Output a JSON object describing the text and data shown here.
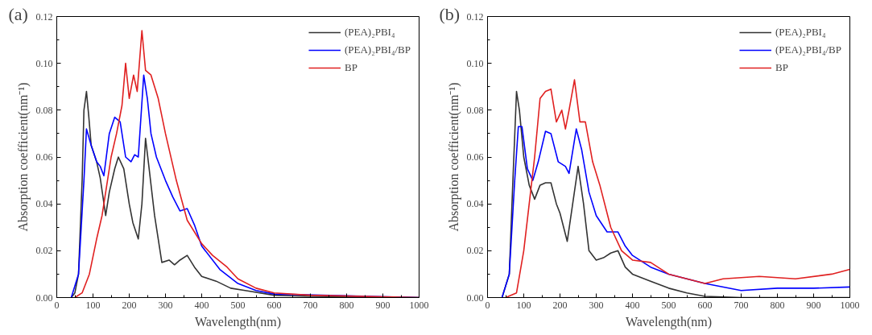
{
  "chart_data": [
    {
      "type": "line",
      "title": "(a)",
      "xlabel": "Wavelength(nm)",
      "ylabel": "Absorption coefficient(nm⁻¹)",
      "xlim": [
        0,
        1000
      ],
      "ylim": [
        0,
        0.12
      ],
      "xticks": [
        0,
        100,
        200,
        300,
        400,
        500,
        600,
        700,
        800,
        900,
        1000
      ],
      "yticks": [
        {
          "value": 0,
          "label": "0.00"
        },
        {
          "value": 0.02,
          "label": "0.02"
        },
        {
          "value": 0.04,
          "label": "0.04"
        },
        {
          "value": 0.06,
          "label": "0.06"
        },
        {
          "value": 0.08,
          "label": "0.08"
        },
        {
          "value": 0.1,
          "label": "0.10"
        },
        {
          "value": 0.12,
          "label": "0.12"
        }
      ],
      "grid": false,
      "legend": "top right",
      "line_style": "solid",
      "marker": "none",
      "series": [
        {
          "name": "(PEA)₂PBI₄",
          "color": "#333333",
          "x": [
            40,
            50,
            60,
            70,
            75,
            82,
            88,
            95,
            110,
            120,
            135,
            145,
            160,
            170,
            185,
            200,
            210,
            225,
            235,
            245,
            255,
            270,
            290,
            310,
            325,
            340,
            360,
            380,
            400,
            440,
            480,
            520,
            600,
            700,
            1000
          ],
          "values": [
            0,
            0.002,
            0.01,
            0.05,
            0.08,
            0.088,
            0.078,
            0.065,
            0.058,
            0.051,
            0.035,
            0.045,
            0.055,
            0.06,
            0.055,
            0.04,
            0.032,
            0.025,
            0.04,
            0.068,
            0.055,
            0.035,
            0.015,
            0.016,
            0.014,
            0.016,
            0.018,
            0.013,
            0.009,
            0.007,
            0.004,
            0.003,
            0.001,
            0.0005,
            0
          ]
        },
        {
          "name": "(PEA)₂PBI₄/BP",
          "color": "#0000ff",
          "x": [
            40,
            60,
            75,
            82,
            95,
            110,
            120,
            130,
            145,
            160,
            175,
            190,
            205,
            215,
            225,
            240,
            250,
            260,
            275,
            300,
            320,
            340,
            360,
            380,
            400,
            450,
            500,
            550,
            600,
            1000
          ],
          "values": [
            0,
            0.01,
            0.05,
            0.072,
            0.065,
            0.058,
            0.056,
            0.052,
            0.07,
            0.077,
            0.075,
            0.06,
            0.058,
            0.061,
            0.06,
            0.095,
            0.085,
            0.07,
            0.06,
            0.05,
            0.043,
            0.037,
            0.038,
            0.031,
            0.022,
            0.012,
            0.006,
            0.003,
            0.0015,
            0
          ]
        },
        {
          "name": "BP",
          "color": "#e02020",
          "x": [
            50,
            70,
            90,
            110,
            125,
            140,
            150,
            165,
            180,
            190,
            200,
            212,
            222,
            235,
            245,
            260,
            280,
            300,
            330,
            360,
            400,
            430,
            470,
            500,
            550,
            600,
            700,
            1000
          ],
          "values": [
            0,
            0.002,
            0.01,
            0.025,
            0.035,
            0.05,
            0.06,
            0.07,
            0.082,
            0.1,
            0.085,
            0.095,
            0.088,
            0.114,
            0.097,
            0.095,
            0.085,
            0.07,
            0.05,
            0.033,
            0.023,
            0.018,
            0.013,
            0.008,
            0.004,
            0.002,
            0.001,
            0
          ]
        }
      ]
    },
    {
      "type": "line",
      "title": "(b)",
      "xlabel": "Wavelength(nm)",
      "ylabel": "Absorption coefficient(nm⁻¹)",
      "xlim": [
        0,
        1000
      ],
      "ylim": [
        0,
        0.12
      ],
      "xticks": [
        0,
        100,
        200,
        300,
        400,
        500,
        600,
        700,
        800,
        900,
        1000
      ],
      "yticks": [
        {
          "value": 0,
          "label": "0.00"
        },
        {
          "value": 0.02,
          "label": "0.02"
        },
        {
          "value": 0.04,
          "label": "0.04"
        },
        {
          "value": 0.06,
          "label": "0.06"
        },
        {
          "value": 0.08,
          "label": "0.08"
        },
        {
          "value": 0.1,
          "label": "0.10"
        },
        {
          "value": 0.12,
          "label": "0.12"
        }
      ],
      "grid": false,
      "legend": "top right",
      "line_style": "solid",
      "marker": "none",
      "series": [
        {
          "name": "(PEA)₂PBI₄",
          "color": "#333333",
          "x": [
            40,
            60,
            70,
            80,
            88,
            100,
            115,
            130,
            145,
            160,
            175,
            190,
            200,
            220,
            235,
            250,
            265,
            280,
            300,
            320,
            340,
            360,
            380,
            400,
            450,
            500,
            550,
            600,
            700,
            1000
          ],
          "values": [
            0,
            0.01,
            0.05,
            0.088,
            0.08,
            0.06,
            0.048,
            0.042,
            0.048,
            0.049,
            0.049,
            0.04,
            0.036,
            0.024,
            0.04,
            0.056,
            0.04,
            0.02,
            0.016,
            0.017,
            0.019,
            0.02,
            0.013,
            0.01,
            0.007,
            0.004,
            0.002,
            0.0005,
            0,
            0
          ]
        },
        {
          "name": "(PEA)₂PBI₄/BP",
          "color": "#0000ff",
          "x": [
            40,
            60,
            75,
            85,
            95,
            110,
            125,
            140,
            160,
            175,
            195,
            215,
            225,
            245,
            260,
            280,
            300,
            330,
            360,
            380,
            400,
            450,
            500,
            550,
            600,
            700,
            800,
            900,
            1000
          ],
          "values": [
            0,
            0.01,
            0.05,
            0.073,
            0.073,
            0.055,
            0.05,
            0.058,
            0.071,
            0.07,
            0.058,
            0.056,
            0.053,
            0.072,
            0.063,
            0.045,
            0.035,
            0.028,
            0.028,
            0.022,
            0.018,
            0.013,
            0.01,
            0.008,
            0.006,
            0.003,
            0.004,
            0.004,
            0.0045
          ]
        },
        {
          "name": "BP",
          "color": "#e02020",
          "x": [
            50,
            80,
            100,
            115,
            130,
            145,
            160,
            175,
            190,
            205,
            215,
            225,
            240,
            255,
            270,
            290,
            310,
            340,
            370,
            400,
            450,
            500,
            550,
            600,
            650,
            750,
            850,
            950,
            1000
          ],
          "values": [
            0,
            0.002,
            0.02,
            0.04,
            0.06,
            0.085,
            0.088,
            0.089,
            0.075,
            0.08,
            0.072,
            0.08,
            0.093,
            0.075,
            0.075,
            0.058,
            0.048,
            0.03,
            0.02,
            0.016,
            0.015,
            0.01,
            0.008,
            0.006,
            0.008,
            0.009,
            0.008,
            0.01,
            0.012
          ]
        }
      ]
    }
  ]
}
